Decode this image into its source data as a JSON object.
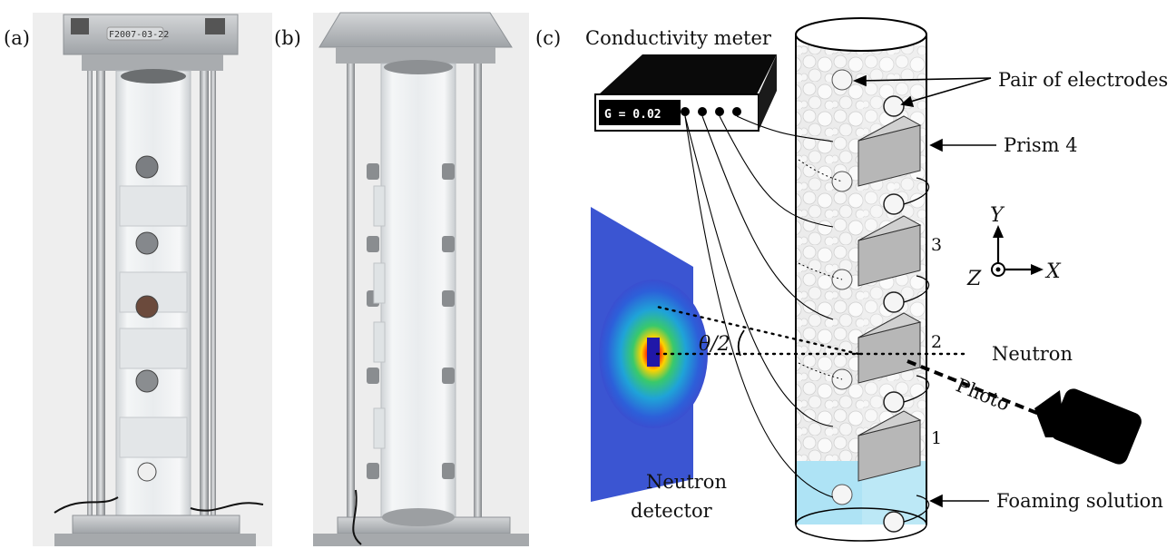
{
  "panels": {
    "a": "(a)",
    "b": "(b)",
    "c": "(c)"
  },
  "photo_a": {
    "plate_text": "F2007-03-22"
  },
  "labels": {
    "conductivity_meter": "Conductivity meter",
    "meter_display": "G = 0.02",
    "pair_of_electrodes": "Pair of electrodes",
    "prism": "Prism 4",
    "prism_3": "3",
    "prism_2": "2",
    "prism_1": "1",
    "neutron": "Neutron",
    "photo": "Photo",
    "theta": "θ/2",
    "neutron_detector_line1": "Neutron",
    "neutron_detector_line2": "detector",
    "foaming_solution": "Foaming solution"
  },
  "axes": {
    "y": "Y",
    "x": "X",
    "z": "Z"
  },
  "colors": {
    "foam": "#e9e9e9",
    "liquid": "#aee3f5",
    "aluminum": "#b9bcbf",
    "black": "#000000"
  }
}
